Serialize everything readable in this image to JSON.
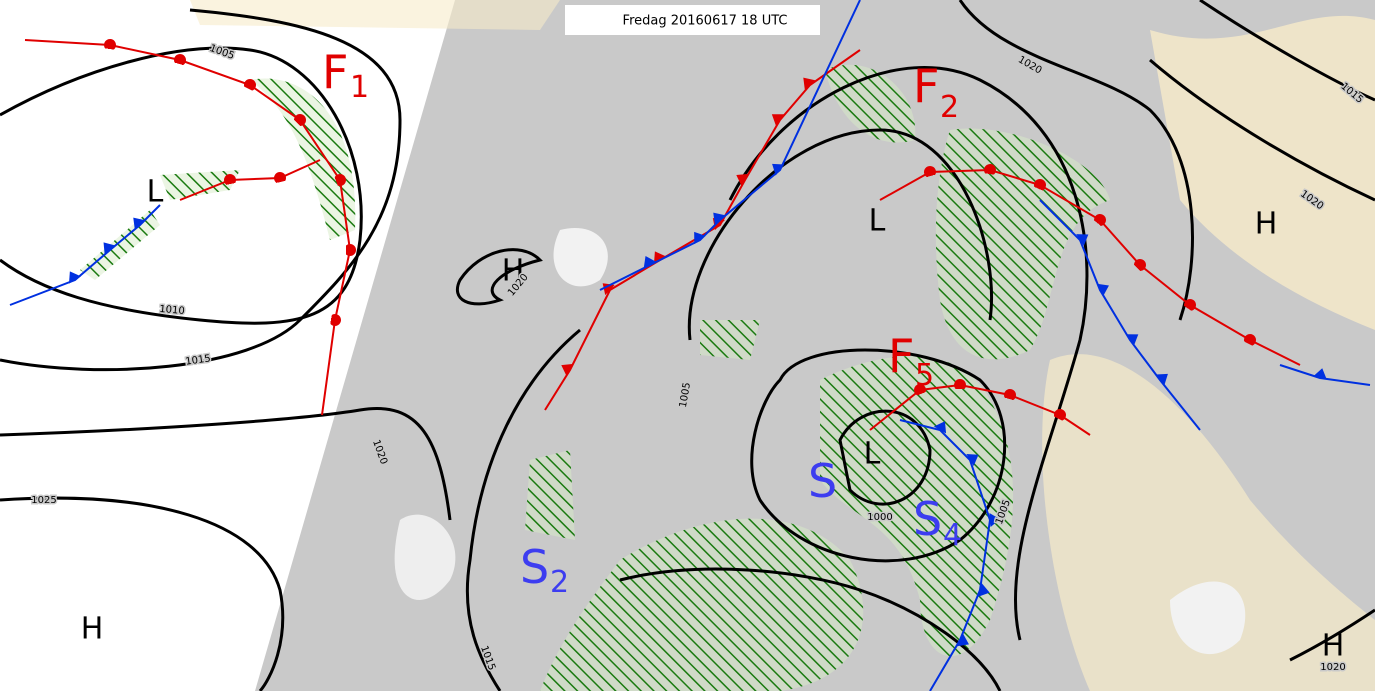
{
  "header": {
    "title": "Fredag 20160617 18 UTC"
  },
  "pressure_centers": [
    {
      "label": "H"
    },
    {
      "label": "H"
    },
    {
      "label": "H"
    },
    {
      "label": "H"
    },
    {
      "label": "L"
    },
    {
      "label": "L"
    },
    {
      "label": "L"
    }
  ],
  "fronts": [
    {
      "letter": "F",
      "index": "1"
    },
    {
      "letter": "F",
      "index": "2"
    },
    {
      "letter": "F",
      "index": "5"
    }
  ],
  "systems": [
    {
      "letter": "S",
      "index": "2"
    },
    {
      "letter": "S",
      "index": "4"
    },
    {
      "letter": "S"
    }
  ],
  "isobar_labels": [
    "1005",
    "1010",
    "1015",
    "1020",
    "1025",
    "1020",
    "1005",
    "1000",
    "1020",
    "1015",
    "1020",
    "1020",
    "1015",
    "1005"
  ]
}
